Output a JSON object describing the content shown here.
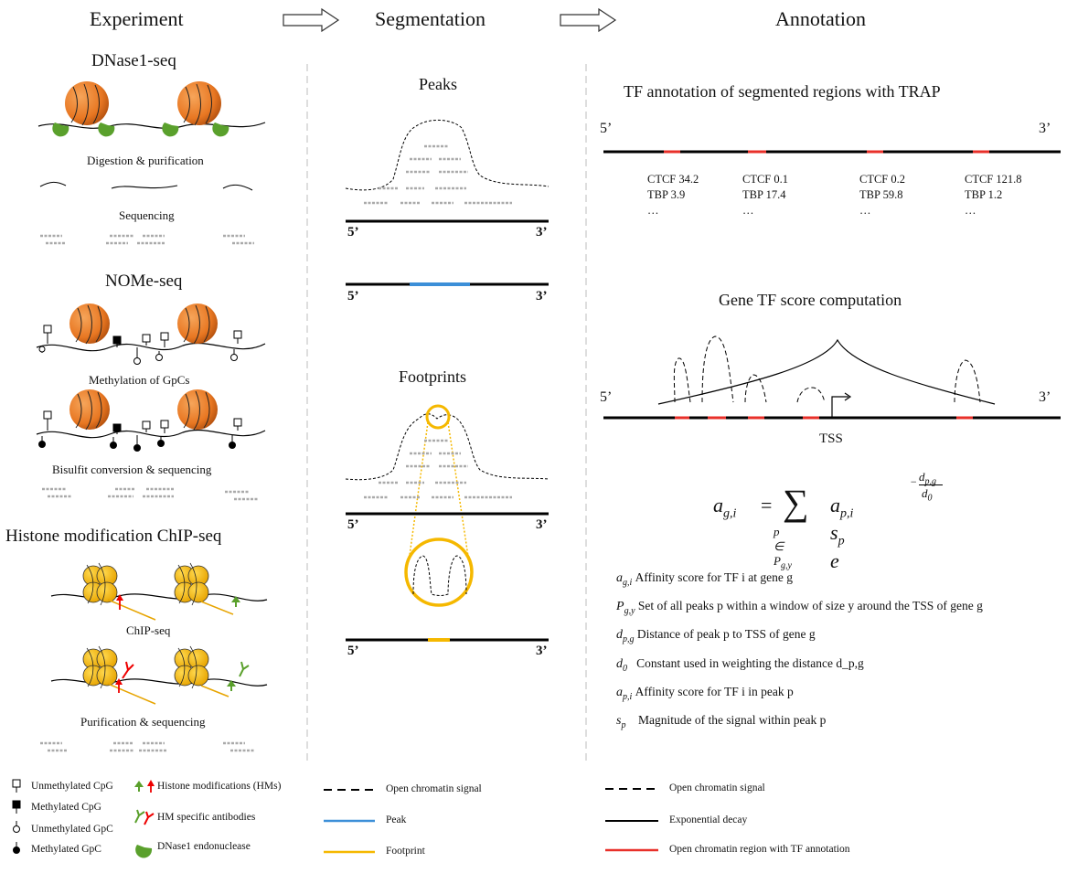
{
  "headers": {
    "experiment": "Experiment",
    "segmentation": "Segmentation",
    "annotation": "Annotation"
  },
  "experiment": {
    "dnase_title": "DNase1-seq",
    "digestion_caption": "Digestion & purification",
    "sequencing_caption": "Sequencing",
    "nome_title": "NOMe-seq",
    "methylation_caption": "Methylation of GpCs",
    "bisulfit_caption": "Bisulfit conversion & sequencing",
    "histone_title": "Histone modification ChIP-seq",
    "chip_caption": "ChIP-seq",
    "purification_caption": "Purification & sequencing"
  },
  "segmentation": {
    "peaks_title": "Peaks",
    "footprints_title": "Footprints",
    "five_prime": "5’",
    "three_prime": "3’"
  },
  "annotation": {
    "trap_title": "TF annotation of segmented regions with TRAP",
    "five_prime": "5’",
    "three_prime": "3’",
    "regions": [
      {
        "l1": "CTCF 34.2",
        "l2": "TBP    3.9",
        "l3": "…"
      },
      {
        "l1": "CTCF   0.1",
        "l2": "TBP   17.4",
        "l3": "…"
      },
      {
        "l1": "CTCF   0.2",
        "l2": "TBP   59.8",
        "l3": "…"
      },
      {
        "l1": "CTCF 121.8",
        "l2": "TBP      1.2",
        "l3": "…"
      }
    ],
    "gene_title": "Gene TF score computation",
    "tss_label": "TSS",
    "definitions": [
      {
        "sym": "a",
        "sub": "g,i",
        "text": "Affinity score for TF i at gene g"
      },
      {
        "sym": "P",
        "sub": "g,y",
        "text": "Set of all peaks p within a window of size y around the TSS of gene g"
      },
      {
        "sym": "d",
        "sub": "p,g",
        "text": "Distance of peak p to TSS of gene g"
      },
      {
        "sym": "d",
        "sub": "0",
        "text": "Constant used in weighting the distance d_p,g"
      },
      {
        "sym": "a",
        "sub": "p,i",
        "text": "Affinity score for TF i in peak p"
      },
      {
        "sym": "s",
        "sub": "p",
        "text": "Magnitude of the signal within peak p"
      }
    ]
  },
  "legend": {
    "unmethylated_cpg": "Unmethylated CpG",
    "methylated_cpg": "Methylated CpG",
    "unmethylated_gpc": "Unmethylated GpC",
    "methylated_gpc": "Methylated GpC",
    "histone_mods": "Histone modifications (HMs)",
    "hm_antibodies": "HM specific antibodies",
    "dnase_endo": "DNase1 endonuclease",
    "open_signal_1": "Open chromatin signal",
    "peak": "Peak",
    "footprint": "Footprint",
    "open_signal_2": "Open chromatin signal",
    "exp_decay": "Exponential decay",
    "open_region_tf": "Open chromatin region with TF annotation"
  },
  "colors": {
    "nucleosome_orange": "#e87722",
    "dnase_green": "#5aa02c",
    "histone_yellow": "#f5b800",
    "peak_blue": "#3c8fd8",
    "footprint_yellow": "#f5b800",
    "tf_red": "#e8302a",
    "read_gray": "#aaaaaa"
  }
}
